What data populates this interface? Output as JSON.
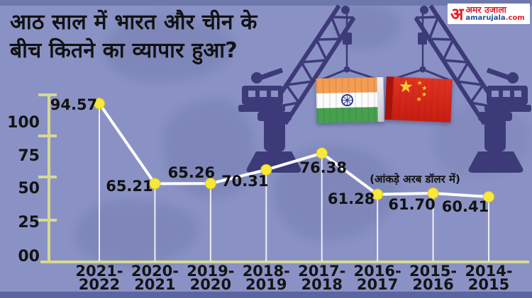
{
  "header": {
    "title_line1": "आठ साल में भारत और चीन के",
    "title_line2": "बीच कितने का व्यापार हुआ?"
  },
  "note": "(आंकड़े अरब डॉलर में)",
  "logo": {
    "mark": "अ",
    "brand_hindi": "अमर उजाला",
    "site": "amarujala",
    "tld": ".com"
  },
  "chart_data": {
    "type": "line",
    "title": "आठ साल में भारत और चीन के बीच कितने का व्यापार हुआ?",
    "unit_note": "(आंकड़े अरब डॉलर में)",
    "categories": [
      "2021-2022",
      "2020-2021",
      "2019-2020",
      "2018-2019",
      "2017-2018",
      "2016-2017",
      "2015-2016",
      "2014-2015"
    ],
    "values": [
      94.57,
      65.21,
      65.26,
      70.31,
      76.38,
      61.28,
      61.7,
      60.41
    ],
    "value_labels": [
      "94.57",
      "65.21",
      "65.26",
      "70.31",
      "76.38",
      "61.28",
      "61.70",
      "60.41"
    ],
    "y_ticks": [
      "100",
      "75",
      "50",
      "25",
      "00"
    ],
    "ylim": [
      0,
      110
    ],
    "grid": false,
    "legend": "none",
    "line_color": "#ffffff",
    "marker_color": "#f6e93c"
  },
  "illustration": {
    "left_container": "india-flag-container",
    "right_container": "china-flag-container"
  },
  "colors": {
    "background": "#8a92c5",
    "crane": "#3c3a78",
    "axis": "#d6d994",
    "text": "#121212",
    "logo_red": "#e41b22",
    "logo_blue": "#23509e",
    "india_saffron": "#f49e52",
    "india_green": "#46a04c",
    "china_red": "#dc271a",
    "star_yellow": "#fed32f"
  }
}
